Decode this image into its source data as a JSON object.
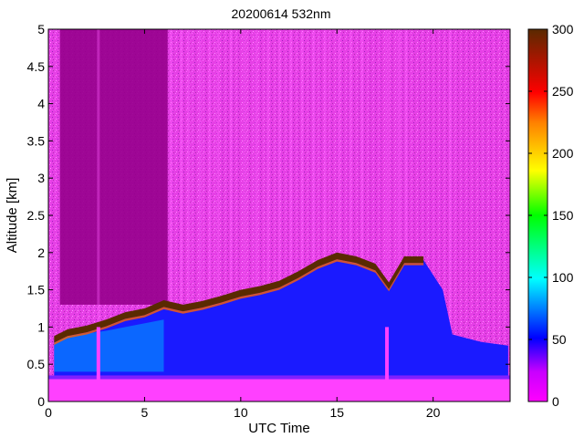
{
  "chart_data": {
    "type": "heatmap",
    "title": "20200614 532nm",
    "xlabel": "UTC Time",
    "ylabel": "Altitude [km]",
    "xlim": [
      0,
      24
    ],
    "ylim": [
      0,
      5
    ],
    "x_ticks": [
      0,
      5,
      10,
      15,
      20
    ],
    "y_ticks": [
      0,
      0.5,
      1,
      1.5,
      2,
      2.5,
      3,
      3.5,
      4,
      4.5,
      5
    ],
    "colorbar": {
      "colormap": "hsv-like",
      "range": [
        0,
        300
      ],
      "ticks": [
        0,
        50,
        100,
        150,
        200,
        250,
        300
      ],
      "colors": [
        "#ff00ff",
        "#0000ff",
        "#00ffff",
        "#00ff00",
        "#ffff00",
        "#ff8000",
        "#ff0000",
        "#5a2a00"
      ]
    },
    "features": {
      "cloud_top_km": [
        {
          "x": 0.3,
          "y": 0.88
        },
        {
          "x": 1,
          "y": 0.97
        },
        {
          "x": 2,
          "y": 1.02
        },
        {
          "x": 3,
          "y": 1.1
        },
        {
          "x": 4,
          "y": 1.2
        },
        {
          "x": 5,
          "y": 1.25
        },
        {
          "x": 6,
          "y": 1.36
        },
        {
          "x": 7,
          "y": 1.3
        },
        {
          "x": 8,
          "y": 1.35
        },
        {
          "x": 9,
          "y": 1.42
        },
        {
          "x": 10,
          "y": 1.5
        },
        {
          "x": 11,
          "y": 1.55
        },
        {
          "x": 12,
          "y": 1.62
        },
        {
          "x": 13,
          "y": 1.75
        },
        {
          "x": 14,
          "y": 1.9
        },
        {
          "x": 15,
          "y": 2.0
        },
        {
          "x": 16,
          "y": 1.95
        },
        {
          "x": 17,
          "y": 1.85
        },
        {
          "x": 17.7,
          "y": 1.6
        },
        {
          "x": 18.5,
          "y": 1.95
        },
        {
          "x": 19.5,
          "y": 1.95
        }
      ],
      "surface_layer_km": [
        0,
        0.3
      ],
      "boundary_layer_top_km": 0.35
    }
  }
}
